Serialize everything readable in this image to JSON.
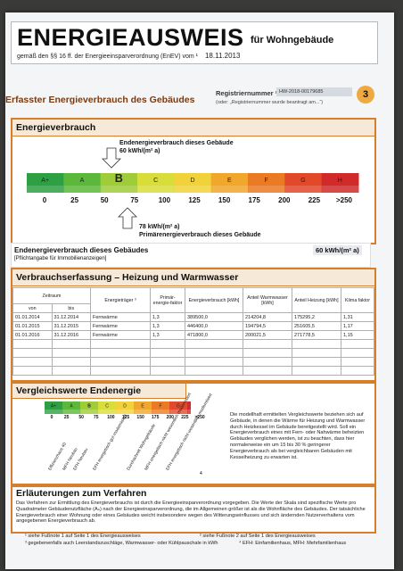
{
  "header": {
    "title": "ENERGIEAUSWEIS",
    "subtitle": "für Wohngebäude",
    "law": "gemäß den §§ 16 ff. der Energieeinsparverordnung (EnEV) vom ¹",
    "date": "18.11.2013"
  },
  "section_title": "Erfasster Energieverbrauch des Gebäudes",
  "registration": {
    "label": "Registriernummer ²",
    "value": "HW-2018-00179685",
    "note": "(oder: „Registriernummer wurde beantragt am...“)"
  },
  "page_number": "3",
  "energy": {
    "heading": "Energieverbrauch",
    "classes": [
      "A+",
      "A",
      "B",
      "C",
      "D",
      "E",
      "F",
      "G",
      "H"
    ],
    "class_colors": [
      "#2ea043",
      "#5cb83a",
      "#9fcd3a",
      "#d8dd3a",
      "#f2d23a",
      "#f1a62c",
      "#eb7a24",
      "#e2482a",
      "#d02a2a"
    ],
    "ticks": [
      "0",
      "25",
      "50",
      "75",
      "100",
      "125",
      "150",
      "175",
      "200",
      "225",
      ">250"
    ],
    "end_label_1": "Endenergieverbrauch dieses Gebäude",
    "end_value": "60 kWh/(m² a)",
    "prim_value": "78 kWh/(m² a)",
    "prim_label": "Primärenergieverbrauch dieses Gebäude"
  },
  "end_row": {
    "label": "Endenergieverbrauch dieses Gebäudes",
    "note": "[Pflichtangabe für Immobilienanzeigen]",
    "value": "60 kWh/(m² a)"
  },
  "consumption": {
    "heading": "Verbrauchserfassung – Heizung und Warmwasser",
    "headers": {
      "period": "Zeitraum",
      "from": "von",
      "to": "bis",
      "carrier": "Energieträger ³",
      "factor": "Primär-energie-faktor",
      "consumption": "Energieverbrauch [kWh]",
      "ww": "Anteil Warmwasser [kWh]",
      "heat": "Anteil Heizung [kWh]",
      "climate": "Klima faktor"
    },
    "rows": [
      {
        "from": "01.01.2014",
        "to": "31.12.2014",
        "carrier": "Fernwärme",
        "factor": "1,3",
        "consumption": "389500,0",
        "ww": "214204,8",
        "heat": "175295,2",
        "climate": "1,31"
      },
      {
        "from": "01.01.2015",
        "to": "31.12.2015",
        "carrier": "Fernwärme",
        "factor": "1,3",
        "consumption": "446400,0",
        "ww": "194794,5",
        "heat": "251605,5",
        "climate": "1,17"
      },
      {
        "from": "01.01.2016",
        "to": "31.12.2016",
        "carrier": "Fernwärme",
        "factor": "1,3",
        "consumption": "471800,0",
        "ww": "200021,5",
        "heat": "271778,5",
        "climate": "1,15"
      }
    ]
  },
  "comparison": {
    "heading": "Vergleichswerte Endenergie",
    "ticks": [
      "0",
      "25",
      "50",
      "75",
      "100",
      "125",
      "150",
      "175",
      "200",
      "225",
      ">250"
    ],
    "labels": [
      "Effizienzhaus 40",
      "MFH Neubau",
      "EFH Neubau",
      "EFH energetisch gut modernisiert",
      "Durchschnitt Wohngebäude",
      "MFH energetisch nicht wesentlich modernisiert",
      "EFH energetisch nicht wesentlich modernisiert"
    ],
    "footnote_mark": "4",
    "text": "Die modellhaft ermittelten Vergleichswerte beziehen sich auf Gebäude, in denen die Wärme für Heizung und Warmwasser durch Heizkessel im Gebäude bereitgestellt wird. Soll ein Energieverbrauch eines mit Fern- oder Nahwärme beheizten Gebäudes verglichen werden, ist zu beachten, dass hier normalerweise ein um 15 bis 30 % geringerer Energieverbrauch als bei vergleichbaren Gebäuden mit Kesselheizung zu erwarten ist."
  },
  "explanation": {
    "heading": "Erläuterungen zum Verfahren",
    "text": "Das Verfahren zur Ermittlung des Energieverbrauchs ist durch die Energieeinsparverordnung vorgegeben. Die Werte der Skala sind spezifische Werte pro Quadratmeter Gebäudenutzfläche (Aₙ) nach der Energieeinsparverordnung, die im Allgemeinen größer ist als die Wohnfläche des Gebäudes. Der tatsächliche Energieverbrauch einer Wohnung oder eines Gebäudes weicht insbesondere wegen des Witterungseinflusses und sich ändernden Nutzerverhaltens vom angegebenen Energieverbrauch ab."
  },
  "footnotes": {
    "f1": "¹ siehe Fußnote 1 auf Seite 1 des Energieausweises",
    "f2": "² siehe Fußnote 2 auf Seite 1 des Energieausweises",
    "f3": "³ gegebenenfalls auch Leerstandszuschläge, Warmwasser- oder Kühlpauschale in kWh",
    "f4": "⁴ EFH: Einfamilienhaus, MFH: Mehrfamilienhaus"
  }
}
